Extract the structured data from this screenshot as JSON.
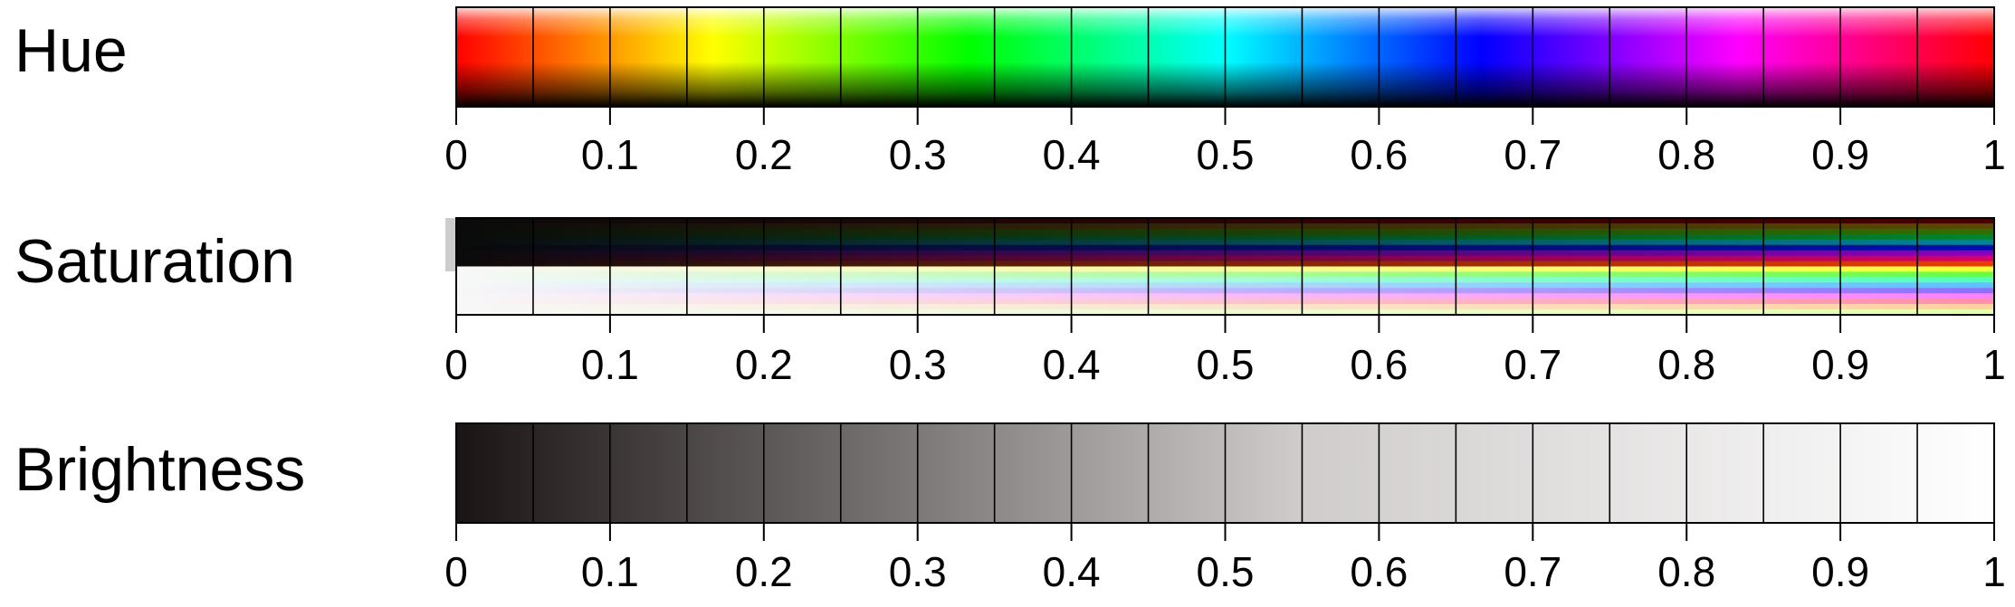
{
  "rows": [
    {
      "id": "hue",
      "label": "Hue",
      "mode": "hue",
      "ticks": [
        "0",
        "0.1",
        "0.2",
        "0.3",
        "0.4",
        "0.5",
        "0.6",
        "0.7",
        "0.8",
        "0.9",
        "1"
      ]
    },
    {
      "id": "saturation",
      "label": "Saturation",
      "mode": "saturation",
      "ticks": [
        "0",
        "0.1",
        "0.2",
        "0.3",
        "0.4",
        "0.5",
        "0.6",
        "0.7",
        "0.8",
        "0.9",
        "1"
      ]
    },
    {
      "id": "brightness",
      "label": "Brightness",
      "mode": "brightness",
      "ticks": [
        "0",
        "0.1",
        "0.2",
        "0.3",
        "0.4",
        "0.5",
        "0.6",
        "0.7",
        "0.8",
        "0.9",
        "1"
      ]
    }
  ],
  "scale": {
    "min": 0,
    "max": 1,
    "cells": 20,
    "major_step": 0.1
  },
  "colors": {
    "dark": "#1a1414",
    "light": "#ffffff",
    "border": "#000000"
  }
}
